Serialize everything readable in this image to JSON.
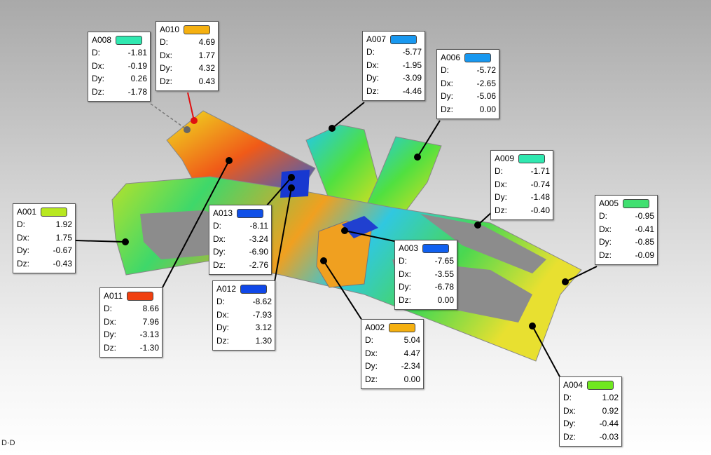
{
  "field_labels": [
    "D:",
    "Dx:",
    "Dy:",
    "Dz:"
  ],
  "footer_label": "D·D",
  "callouts": [
    {
      "id": "A008",
      "color": "#30e8b0",
      "values": [
        "-1.81",
        "-0.19",
        "0.26",
        "-1.78"
      ]
    },
    {
      "id": "A010",
      "color": "#f5b010",
      "values": [
        "4.69",
        "1.77",
        "4.32",
        "0.43"
      ]
    },
    {
      "id": "A007",
      "color": "#1898f0",
      "values": [
        "-5.77",
        "-1.95",
        "-3.09",
        "-4.46"
      ]
    },
    {
      "id": "A006",
      "color": "#1898f0",
      "values": [
        "-5.72",
        "-2.65",
        "-5.06",
        "0.00"
      ]
    },
    {
      "id": "A009",
      "color": "#30e8b0",
      "values": [
        "-1.71",
        "-0.74",
        "-1.48",
        "-0.40"
      ]
    },
    {
      "id": "A005",
      "color": "#40e070",
      "values": [
        "-0.95",
        "-0.41",
        "-0.85",
        "-0.09"
      ]
    },
    {
      "id": "A001",
      "color": "#b8e820",
      "values": [
        "1.92",
        "1.75",
        "-0.67",
        "-0.43"
      ]
    },
    {
      "id": "A013",
      "color": "#1050e8",
      "values": [
        "-8.11",
        "-3.24",
        "-6.90",
        "-2.76"
      ]
    },
    {
      "id": "A011",
      "color": "#f04010",
      "values": [
        "8.66",
        "7.96",
        "-3.13",
        "-1.30"
      ]
    },
    {
      "id": "A012",
      "color": "#1048e8",
      "values": [
        "-8.62",
        "-7.93",
        "3.12",
        "1.30"
      ]
    },
    {
      "id": "A003",
      "color": "#1060f0",
      "values": [
        "-7.65",
        "-3.55",
        "-6.78",
        "0.00"
      ]
    },
    {
      "id": "A002",
      "color": "#f5b010",
      "values": [
        "5.04",
        "4.47",
        "-2.34",
        "0.00"
      ]
    },
    {
      "id": "A004",
      "color": "#70e820",
      "values": [
        "1.02",
        "0.92",
        "-0.44",
        "-0.03"
      ]
    }
  ]
}
